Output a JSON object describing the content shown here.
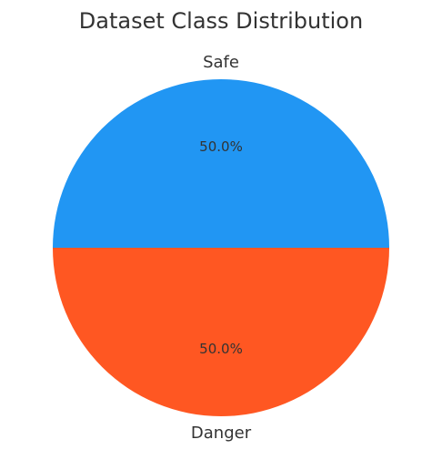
{
  "chart_data": {
    "type": "pie",
    "title": "Dataset Class Distribution",
    "categories": [
      "Safe",
      "Danger"
    ],
    "values": [
      50.0,
      50.0
    ],
    "percent_labels": [
      "50.0%",
      "50.0%"
    ],
    "colors": [
      "#2196F3",
      "#FF5722"
    ],
    "start_angle_deg": 0,
    "direction": "counterclockwise",
    "legend": "none"
  }
}
